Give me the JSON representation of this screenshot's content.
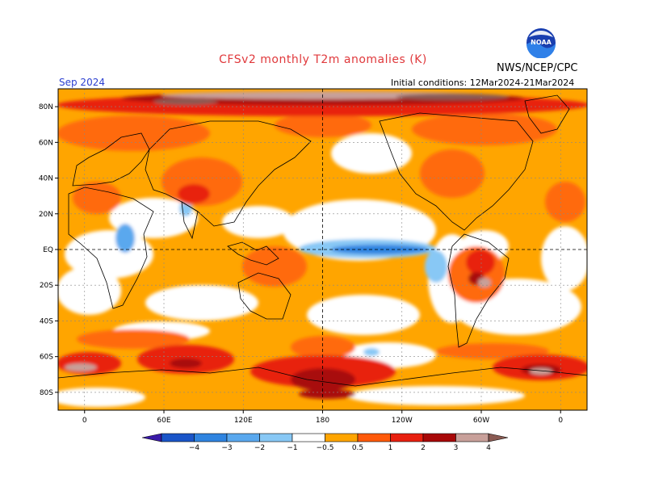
{
  "header": {
    "title": "CFSv2 monthly T2m anomalies (K)",
    "org": "NWS/NCEP/CPC",
    "month": "Sep 2024",
    "initial_conditions": "Initial conditions: 12Mar2024-21Mar2024"
  },
  "logo": {
    "icon": "noaa-logo-icon",
    "text": "NOAA"
  },
  "axes": {
    "lat_labels": [
      "80N",
      "60N",
      "40N",
      "20N",
      "EQ",
      "20S",
      "40S",
      "60S",
      "80S"
    ],
    "lat_values": [
      80,
      60,
      40,
      20,
      0,
      -20,
      -40,
      -60,
      -80
    ],
    "lon_labels": [
      "0",
      "60E",
      "120E",
      "180",
      "120W",
      "60W",
      "0"
    ],
    "lon_values": [
      0,
      60,
      120,
      180,
      240,
      300,
      360
    ],
    "lon_range": [
      -20,
      380
    ],
    "lat_range": [
      -90,
      90
    ]
  },
  "colorbar": {
    "labels": [
      "-4",
      "-3",
      "-2",
      "-1",
      "-0.5",
      "0.5",
      "1",
      "2",
      "3",
      "4"
    ],
    "colors": [
      "#3a1aa8",
      "#1a55c8",
      "#2f84e0",
      "#5aa8ee",
      "#88c8f5",
      "#ffffff",
      "#ffa500",
      "#ff5a0a",
      "#e82010",
      "#a80808",
      "#c8a09a",
      "#8a5a52"
    ]
  },
  "colors": {
    "warm1": "#ffa500",
    "warm2": "#ff6a0a",
    "warm3": "#e82010",
    "warm4": "#a80808",
    "warm5": "#c8a09a",
    "warm6": "#8a5a52",
    "cool1": "#88c8f5",
    "cool2": "#5aa8ee",
    "cool3": "#2f84e0"
  }
}
